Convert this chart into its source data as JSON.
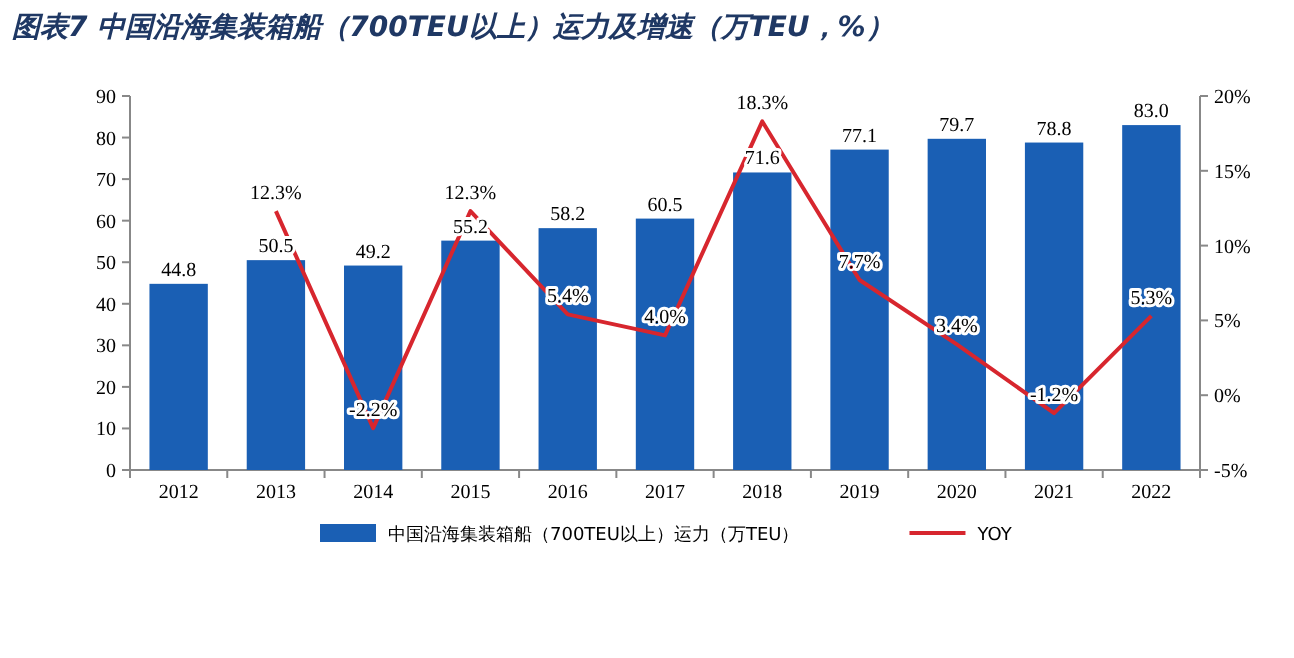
{
  "chart_data": {
    "type": "bar",
    "title": "图表7 中国沿海集装箱船（700TEU以上）运力及增速（万TEU，%）",
    "categories": [
      "2012",
      "2013",
      "2014",
      "2015",
      "2016",
      "2017",
      "2018",
      "2019",
      "2020",
      "2021",
      "2022"
    ],
    "series": [
      {
        "name": "中国沿海集装箱船（700TEU以上）运力（万TEU）",
        "color": "#1a5fb4",
        "values": [
          44.8,
          50.5,
          49.2,
          55.2,
          58.2,
          60.5,
          71.6,
          77.1,
          79.7,
          78.8,
          83.0
        ],
        "value_labels": [
          "44.8",
          "50.5",
          "49.2",
          "55.2",
          "58.2",
          "60.5",
          "71.6",
          "77.1",
          "79.7",
          "78.8",
          "83.0"
        ]
      },
      {
        "name": "YOY",
        "type": "line",
        "axis": "y2",
        "color": "#d7262e",
        "values": [
          null,
          12.3,
          -2.2,
          12.3,
          5.4,
          4.0,
          18.3,
          7.7,
          3.4,
          -1.2,
          5.3
        ],
        "value_labels": [
          null,
          "12.3%",
          "-2.2%",
          "12.3%",
          "5.4%",
          "4.0%",
          "18.3%",
          "7.7%",
          "3.4%",
          "-1.2%",
          "5.3%"
        ]
      }
    ],
    "ylim": [
      0,
      90
    ],
    "yticks": [
      0,
      10,
      20,
      30,
      40,
      50,
      60,
      70,
      80,
      90
    ],
    "y2lim": [
      -5,
      20
    ],
    "y2ticks": [
      {
        "value": -5,
        "label": "-5%"
      },
      {
        "value": 0,
        "label": "0%"
      },
      {
        "value": 5,
        "label": "5%"
      },
      {
        "value": 10,
        "label": "10%"
      },
      {
        "value": 15,
        "label": "15%"
      },
      {
        "value": 20,
        "label": "20%"
      }
    ],
    "grid": false,
    "legend": "bottom",
    "marker": "none",
    "line_style": "solid"
  }
}
